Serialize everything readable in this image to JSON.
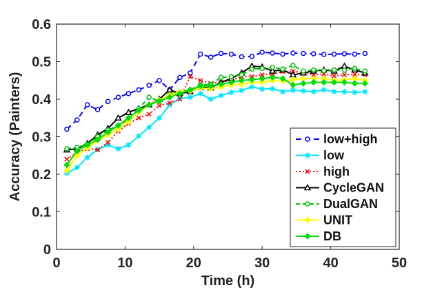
{
  "chart_data": {
    "type": "line",
    "title": "",
    "xlabel": "Time (h)",
    "ylabel": "Accuracy (Painters)",
    "xlim": [
      0,
      50
    ],
    "ylim": [
      0,
      0.6
    ],
    "xticks": [
      0,
      10,
      20,
      30,
      40,
      50
    ],
    "yticks": [
      0,
      0.1,
      0.2,
      0.3,
      0.4,
      0.5,
      0.6
    ],
    "xtick_labels": [
      "0",
      "10",
      "20",
      "30",
      "40",
      "50"
    ],
    "ytick_labels": [
      "0",
      "0.1",
      "0.2",
      "0.3",
      "0.4",
      "0.5",
      "0.6"
    ],
    "grid": false,
    "legend_position": "bottom-right",
    "x": [
      1.5,
      3,
      4.5,
      6,
      7.5,
      9,
      10.5,
      12,
      13.5,
      15,
      16.5,
      18,
      19.5,
      21,
      22.5,
      24,
      25.5,
      27,
      28.5,
      30,
      31.5,
      33,
      34.5,
      36,
      37.5,
      39,
      40.5,
      42,
      43.5,
      45
    ],
    "series": [
      {
        "name": "low+high",
        "color": "#0000ff",
        "dash": "8,5",
        "marker": "circle",
        "values": [
          0.32,
          0.345,
          0.385,
          0.372,
          0.394,
          0.405,
          0.415,
          0.425,
          0.437,
          0.45,
          0.425,
          0.458,
          0.47,
          0.52,
          0.512,
          0.522,
          0.52,
          0.513,
          0.514,
          0.525,
          0.523,
          0.52,
          0.523,
          0.522,
          0.521,
          0.519,
          0.52,
          0.521,
          0.52,
          0.522
        ]
      },
      {
        "name": "low",
        "color": "#00e5ff",
        "dash": "",
        "marker": "star",
        "values": [
          0.203,
          0.218,
          0.245,
          0.266,
          0.278,
          0.268,
          0.278,
          0.302,
          0.325,
          0.35,
          0.385,
          0.402,
          0.405,
          0.415,
          0.4,
          0.41,
          0.418,
          0.423,
          0.433,
          0.427,
          0.428,
          0.42,
          0.424,
          0.422,
          0.42,
          0.425,
          0.42,
          0.42,
          0.418,
          0.42
        ]
      },
      {
        "name": "high",
        "color": "#ff0000",
        "dash": "2,3",
        "marker": "x",
        "values": [
          0.24,
          0.258,
          0.268,
          0.265,
          0.285,
          0.315,
          0.335,
          0.35,
          0.36,
          0.383,
          0.39,
          0.4,
          0.46,
          0.45,
          0.442,
          0.445,
          0.45,
          0.46,
          0.46,
          0.465,
          0.468,
          0.473,
          0.475,
          0.47,
          0.465,
          0.467,
          0.462,
          0.465,
          0.466,
          0.465
        ]
      },
      {
        "name": "CycleGAN",
        "color": "#000000",
        "dash": "",
        "marker": "triangle",
        "values": [
          0.265,
          0.268,
          0.282,
          0.305,
          0.322,
          0.35,
          0.365,
          0.375,
          0.385,
          0.4,
          0.425,
          0.415,
          0.42,
          0.432,
          0.43,
          0.445,
          0.455,
          0.47,
          0.488,
          0.486,
          0.475,
          0.478,
          0.465,
          0.47,
          0.475,
          0.478,
          0.475,
          0.488,
          0.478,
          0.47
        ]
      },
      {
        "name": "DualGAN",
        "color": "#00c000",
        "dash": "6,4",
        "marker": "circle",
        "values": [
          0.268,
          0.272,
          0.28,
          0.3,
          0.318,
          0.33,
          0.345,
          0.375,
          0.405,
          0.395,
          0.412,
          0.42,
          0.425,
          0.438,
          0.44,
          0.458,
          0.46,
          0.465,
          0.48,
          0.482,
          0.485,
          0.48,
          0.49,
          0.475,
          0.478,
          0.476,
          0.478,
          0.477,
          0.482,
          0.475
        ]
      },
      {
        "name": "UNIT",
        "color": "#ffff00",
        "dash": "",
        "marker": "diamond",
        "values": [
          0.21,
          0.25,
          0.27,
          0.29,
          0.305,
          0.32,
          0.34,
          0.365,
          0.385,
          0.398,
          0.41,
          0.42,
          0.422,
          0.43,
          0.428,
          0.432,
          0.438,
          0.44,
          0.445,
          0.445,
          0.45,
          0.448,
          0.452,
          0.455,
          0.455,
          0.455,
          0.45,
          0.452,
          0.455,
          0.45
        ]
      },
      {
        "name": "DB",
        "color": "#00dd00",
        "dash": "",
        "marker": "diamond",
        "values": [
          0.225,
          0.262,
          0.278,
          0.292,
          0.312,
          0.33,
          0.35,
          0.37,
          0.385,
          0.395,
          0.405,
          0.415,
          0.425,
          0.435,
          0.435,
          0.44,
          0.445,
          0.45,
          0.452,
          0.455,
          0.458,
          0.455,
          0.438,
          0.442,
          0.445,
          0.445,
          0.445,
          0.445,
          0.442,
          0.442
        ]
      }
    ]
  }
}
